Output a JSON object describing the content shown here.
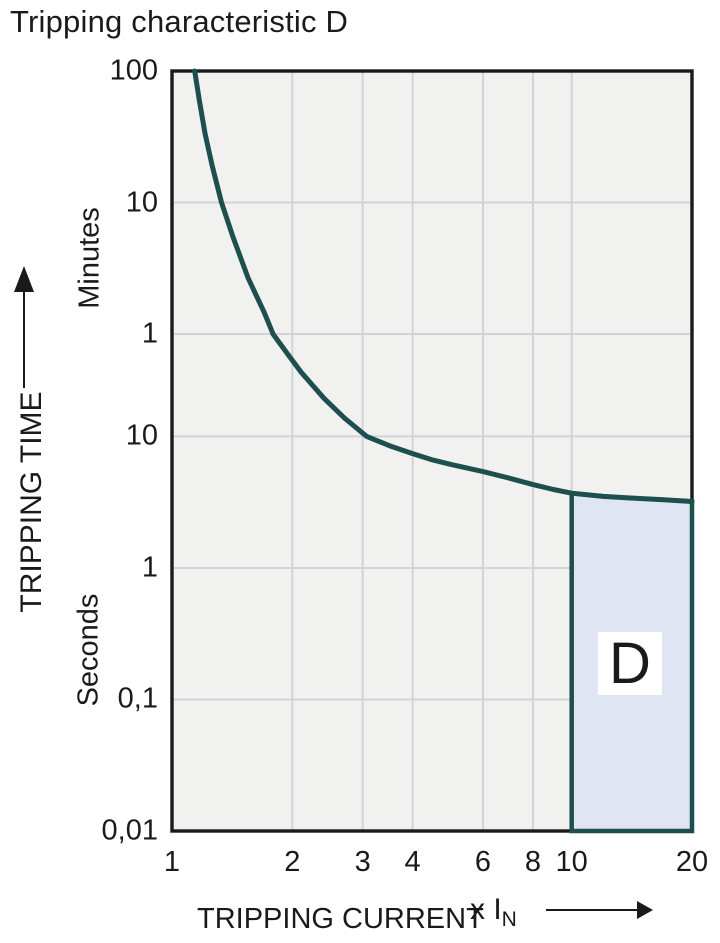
{
  "title": "Tripping characteristic D",
  "colors": {
    "text": "#1a1a1a",
    "frame": "#1a1a1a",
    "grid": "#d3d3d7",
    "plot_bg": "#f1f1f0",
    "curve": "#1d4f4e",
    "region_fill": "#dfe5f3",
    "label_box_bg": "#ffffff",
    "page_bg": "#ffffff"
  },
  "chart_data": {
    "type": "line",
    "title": "Tripping characteristic D",
    "grid": true,
    "legend": false,
    "x_axis": {
      "label": "TRIPPING CURRENT",
      "unit_prefix": "x I",
      "unit_sub": "N",
      "scale": "log",
      "range": [
        1,
        20
      ],
      "ticks": [
        1,
        2,
        3,
        4,
        6,
        8,
        10,
        20
      ],
      "tick_labels": [
        "1",
        "2",
        "3",
        "4",
        "6",
        "8",
        "10",
        "20"
      ],
      "gridlines_at": [
        2,
        3,
        4,
        6,
        8,
        10
      ]
    },
    "y_axis": {
      "label": "TRIPPING TIME",
      "scale": "log",
      "range_seconds": [
        0.01,
        6000
      ],
      "unit_groups": [
        {
          "label": "Minutes",
          "ticks": [
            {
              "label": "100",
              "seconds": 6000
            },
            {
              "label": "10",
              "seconds": 600
            },
            {
              "label": "1",
              "seconds": 60
            }
          ]
        },
        {
          "label": "Seconds",
          "ticks": [
            {
              "label": "10",
              "seconds": 10
            },
            {
              "label": "1",
              "seconds": 1
            },
            {
              "label": "0,1",
              "seconds": 0.1
            },
            {
              "label": "0,01",
              "seconds": 0.01
            }
          ]
        }
      ]
    },
    "series": [
      {
        "name": "tripping-curve",
        "points_multiple_seconds": [
          [
            1.14,
            6000
          ],
          [
            1.17,
            3600
          ],
          [
            1.21,
            2000
          ],
          [
            1.26,
            1150
          ],
          [
            1.33,
            600
          ],
          [
            1.42,
            330
          ],
          [
            1.55,
            160
          ],
          [
            1.7,
            88
          ],
          [
            1.79,
            60
          ],
          [
            1.95,
            42
          ],
          [
            2.1,
            31
          ],
          [
            2.4,
            19.5
          ],
          [
            2.7,
            13.8
          ],
          [
            3.07,
            10
          ],
          [
            3.5,
            8.5
          ],
          [
            4,
            7.4
          ],
          [
            4.5,
            6.6
          ],
          [
            5,
            6.1
          ],
          [
            6,
            5.4
          ],
          [
            7,
            4.8
          ],
          [
            8,
            4.3
          ],
          [
            9,
            3.95
          ],
          [
            10,
            3.7
          ],
          [
            12,
            3.5
          ],
          [
            14,
            3.4
          ],
          [
            17,
            3.3
          ],
          [
            20,
            3.2
          ]
        ]
      }
    ],
    "region": {
      "label": "D",
      "x_range": [
        10,
        20
      ],
      "bottom_seconds": 0.01,
      "top_follows_curve": true
    }
  }
}
